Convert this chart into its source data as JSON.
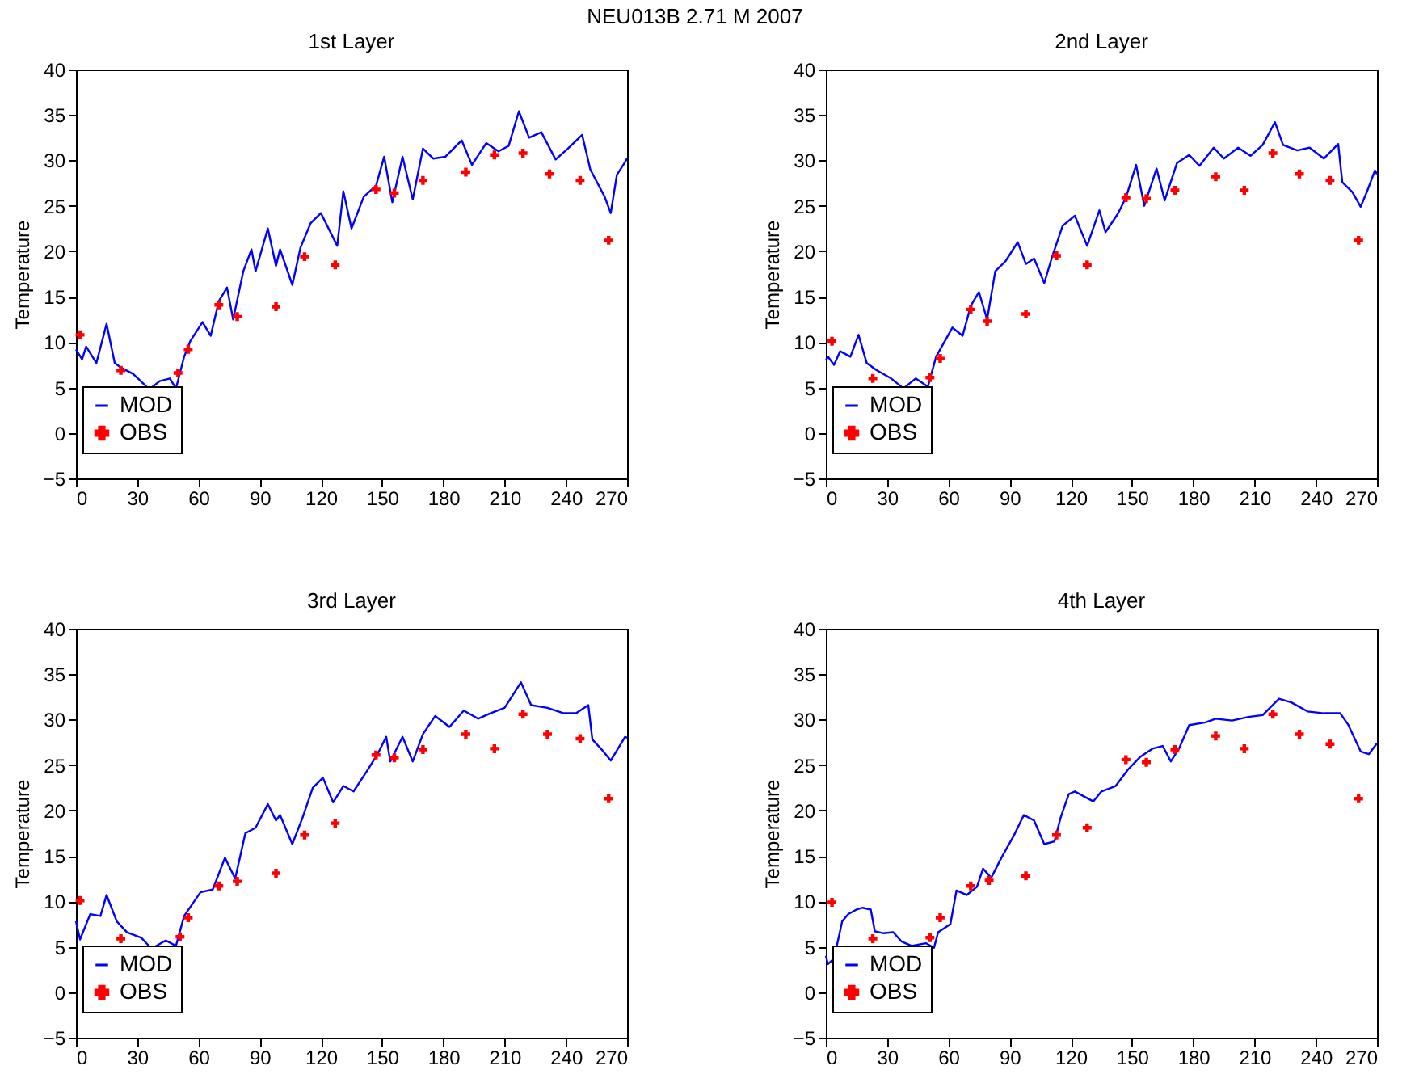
{
  "chart_data": [
    {
      "type": "line",
      "title": "1st Layer",
      "ylabel": "Temperature",
      "annotations": [
        "NEU013B 2.71 M 2007"
      ],
      "xlim": [
        0,
        270
      ],
      "xticks": [
        0,
        30,
        60,
        90,
        120,
        150,
        180,
        210,
        240,
        270
      ],
      "ylim": [
        -5,
        40
      ],
      "yticks": [
        -5,
        0,
        5,
        10,
        15,
        20,
        25,
        30,
        35,
        40
      ],
      "grid": false,
      "legend": "bottom left",
      "series": [
        {
          "name": "MOD",
          "type": "line",
          "color": "#0000ff",
          "marker": "none",
          "line_style": "solid",
          "x": [
            0,
            3,
            5,
            10,
            15,
            19,
            22,
            28,
            36,
            41,
            46,
            49,
            53,
            56,
            62,
            66,
            70,
            74,
            77,
            82,
            86,
            88,
            94,
            98,
            100,
            106,
            110,
            115,
            120,
            128,
            131,
            135,
            141,
            147,
            151,
            155,
            160,
            165,
            170,
            175,
            181,
            189,
            194,
            201,
            207,
            212,
            217,
            222,
            228,
            235,
            241,
            248,
            252,
            259,
            262,
            265,
            269,
            270
          ],
          "values": [
            9.2,
            8.1,
            9.5,
            7.7,
            12.0,
            7.7,
            7.2,
            6.5,
            4.8,
            5.7,
            6.0,
            4.9,
            8.4,
            10.1,
            12.2,
            10.7,
            14.5,
            16.0,
            12.5,
            17.8,
            20.2,
            17.8,
            22.5,
            18.4,
            20.2,
            16.3,
            20.4,
            23.1,
            24.2,
            20.6,
            26.6,
            22.5,
            26.0,
            27.2,
            30.4,
            25.4,
            30.4,
            25.7,
            31.3,
            30.2,
            30.4,
            32.2,
            29.5,
            31.9,
            31.0,
            31.6,
            35.4,
            32.5,
            33.1,
            30.1,
            31.3,
            32.8,
            29.0,
            26.0,
            24.2,
            28.4,
            29.8,
            30.2
          ]
        },
        {
          "name": "OBS",
          "type": "scatter",
          "color": "#ff0000",
          "marker": "cross",
          "x": [
            2,
            22,
            50,
            55,
            70,
            79,
            98,
            112,
            127,
            147,
            156,
            170,
            191,
            205,
            219,
            232,
            247,
            261
          ],
          "values": [
            10.8,
            6.9,
            6.6,
            9.2,
            14.1,
            12.8,
            13.9,
            19.4,
            18.5,
            26.8,
            26.4,
            27.8,
            28.7,
            30.6,
            30.8,
            28.5,
            27.8,
            21.2
          ]
        }
      ]
    },
    {
      "type": "line",
      "title": "2nd Layer",
      "ylabel": "Temperature",
      "xlim": [
        0,
        270
      ],
      "xticks": [
        0,
        30,
        60,
        90,
        120,
        150,
        180,
        210,
        240,
        270
      ],
      "ylim": [
        -5,
        40
      ],
      "yticks": [
        -5,
        0,
        5,
        10,
        15,
        20,
        25,
        30,
        35,
        40
      ],
      "grid": false,
      "legend": "bottom left",
      "series": [
        {
          "name": "MOD",
          "type": "line",
          "color": "#0000ff",
          "marker": "none",
          "line_style": "solid",
          "x": [
            0,
            1,
            4,
            7,
            12,
            16,
            20,
            25,
            32,
            38,
            44,
            50,
            54,
            62,
            67,
            71,
            75,
            79,
            83,
            88,
            94,
            98,
            102,
            107,
            111,
            116,
            122,
            128,
            134,
            137,
            143,
            147,
            152,
            156,
            162,
            166,
            172,
            178,
            183,
            190,
            195,
            202,
            208,
            214,
            220,
            224,
            231,
            237,
            244,
            251,
            253,
            258,
            262,
            265,
            269,
            270
          ],
          "values": [
            8.0,
            8.4,
            7.5,
            9.0,
            8.4,
            10.8,
            7.7,
            6.9,
            6.0,
            4.9,
            6.0,
            5.1,
            8.4,
            11.6,
            10.7,
            14.0,
            15.5,
            12.5,
            17.8,
            18.9,
            21.0,
            18.6,
            19.2,
            16.5,
            19.5,
            22.8,
            23.9,
            20.6,
            24.5,
            22.1,
            24.1,
            25.9,
            29.5,
            25.0,
            29.1,
            25.6,
            29.7,
            30.6,
            29.4,
            31.4,
            30.2,
            31.4,
            30.5,
            31.7,
            34.2,
            31.7,
            31.1,
            31.4,
            30.2,
            31.8,
            27.6,
            26.5,
            24.9,
            26.5,
            28.9,
            28.5
          ]
        },
        {
          "name": "OBS",
          "type": "scatter",
          "color": "#ff0000",
          "marker": "cross",
          "x": [
            3,
            23,
            51,
            56,
            71,
            79,
            98,
            113,
            128,
            147,
            157,
            171,
            191,
            205,
            219,
            232,
            247,
            261
          ],
          "values": [
            10.1,
            6.0,
            6.1,
            8.2,
            13.6,
            12.3,
            13.1,
            19.5,
            18.5,
            25.9,
            25.8,
            26.7,
            28.2,
            26.7,
            30.8,
            28.5,
            27.8,
            21.2
          ]
        }
      ]
    },
    {
      "type": "line",
      "title": "3rd Layer",
      "ylabel": "Temperature",
      "xlim": [
        0,
        270
      ],
      "xticks": [
        0,
        30,
        60,
        90,
        120,
        150,
        180,
        210,
        240,
        270
      ],
      "ylim": [
        -5,
        40
      ],
      "yticks": [
        -5,
        0,
        5,
        10,
        15,
        20,
        25,
        30,
        35,
        40
      ],
      "grid": false,
      "legend": "bottom left",
      "series": [
        {
          "name": "MOD",
          "type": "line",
          "color": "#0000ff",
          "marker": "none",
          "line_style": "solid",
          "x": [
            0,
            2,
            7,
            12,
            15,
            20,
            25,
            32,
            37,
            44,
            49,
            53,
            61,
            67,
            73,
            78,
            83,
            88,
            94,
            98,
            100,
            106,
            111,
            116,
            121,
            126,
            131,
            136,
            143,
            148,
            152,
            154,
            160,
            165,
            170,
            176,
            183,
            190,
            197,
            203,
            210,
            218,
            223,
            231,
            239,
            245,
            251,
            253,
            258,
            262,
            265,
            269,
            270
          ],
          "values": [
            7.8,
            5.8,
            8.6,
            8.4,
            10.7,
            7.8,
            6.6,
            6.0,
            4.8,
            5.7,
            5.1,
            8.4,
            11.0,
            11.3,
            14.8,
            12.5,
            17.5,
            18.1,
            20.7,
            18.9,
            19.5,
            16.3,
            19.2,
            22.5,
            23.6,
            20.9,
            22.7,
            22.1,
            24.5,
            26.3,
            28.1,
            25.4,
            28.1,
            25.4,
            28.4,
            30.4,
            29.2,
            31.0,
            30.1,
            30.7,
            31.3,
            34.1,
            31.6,
            31.3,
            30.7,
            30.7,
            31.6,
            27.8,
            26.6,
            25.5,
            26.6,
            28.1,
            28.0
          ]
        },
        {
          "name": "OBS",
          "type": "scatter",
          "color": "#ff0000",
          "marker": "cross",
          "x": [
            2,
            22,
            51,
            55,
            70,
            79,
            98,
            112,
            127,
            147,
            156,
            170,
            191,
            205,
            219,
            231,
            247,
            261
          ],
          "values": [
            10.1,
            5.9,
            6.1,
            8.2,
            11.7,
            12.2,
            13.1,
            17.3,
            18.6,
            26.1,
            25.8,
            26.7,
            28.4,
            26.8,
            30.6,
            28.4,
            27.9,
            21.3
          ]
        }
      ]
    },
    {
      "type": "line",
      "title": "4th Layer",
      "ylabel": "Temperature",
      "xlim": [
        0,
        270
      ],
      "xticks": [
        0,
        30,
        60,
        90,
        120,
        150,
        180,
        210,
        240,
        270
      ],
      "ylim": [
        -5,
        40
      ],
      "yticks": [
        -5,
        0,
        5,
        10,
        15,
        20,
        25,
        30,
        35,
        40
      ],
      "grid": false,
      "legend": "bottom left",
      "series": [
        {
          "name": "MOD",
          "type": "line",
          "color": "#0000ff",
          "marker": "none",
          "line_style": "solid",
          "x": [
            0,
            1,
            4,
            8,
            11,
            15,
            18,
            22,
            24,
            28,
            33,
            37,
            42,
            49,
            53,
            55,
            61,
            64,
            69,
            74,
            77,
            81,
            86,
            92,
            97,
            102,
            107,
            112,
            115,
            119,
            122,
            126,
            131,
            135,
            142,
            148,
            154,
            160,
            165,
            169,
            173,
            178,
            186,
            191,
            199,
            207,
            214,
            222,
            228,
            236,
            244,
            252,
            256,
            262,
            266,
            270
          ],
          "values": [
            4.0,
            3.1,
            3.7,
            7.8,
            8.6,
            9.1,
            9.3,
            9.1,
            6.7,
            6.5,
            6.6,
            5.6,
            5.1,
            5.4,
            4.9,
            6.6,
            7.5,
            11.2,
            10.7,
            11.6,
            13.6,
            12.6,
            14.8,
            17.2,
            19.5,
            18.9,
            16.3,
            16.6,
            19.2,
            21.8,
            22.1,
            21.6,
            21.0,
            22.1,
            22.7,
            24.5,
            25.9,
            26.8,
            27.1,
            25.4,
            26.8,
            29.4,
            29.7,
            30.1,
            29.9,
            30.3,
            30.5,
            32.3,
            31.9,
            30.9,
            30.7,
            30.7,
            29.4,
            26.5,
            26.2,
            27.4
          ]
        },
        {
          "name": "OBS",
          "type": "scatter",
          "color": "#ff0000",
          "marker": "cross",
          "x": [
            3,
            23,
            51,
            56,
            71,
            80,
            98,
            113,
            128,
            147,
            157,
            171,
            191,
            205,
            219,
            232,
            247,
            261
          ],
          "values": [
            9.9,
            5.9,
            6.0,
            8.2,
            11.7,
            12.3,
            12.8,
            17.3,
            18.1,
            25.6,
            25.3,
            26.7,
            28.2,
            26.8,
            30.6,
            28.4,
            27.3,
            21.3
          ]
        }
      ]
    }
  ]
}
